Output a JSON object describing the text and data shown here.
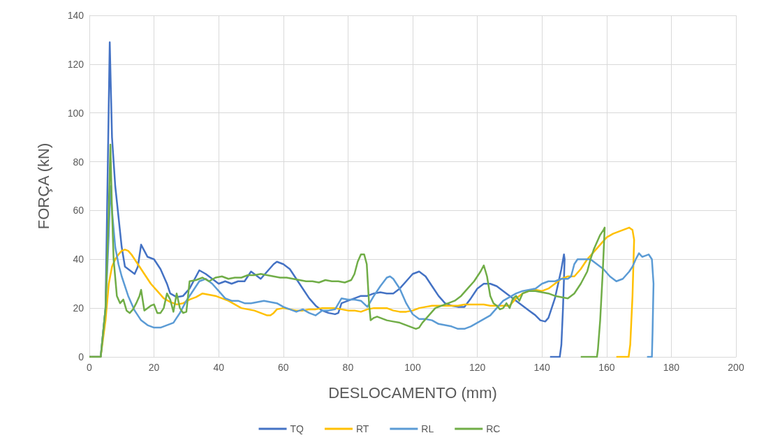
{
  "chart_data": {
    "type": "line",
    "xlabel": "DESLOCAMENTO (mm)",
    "ylabel": "FORÇA (kN)",
    "xlim": [
      0,
      200
    ],
    "xticks": [
      0,
      20,
      40,
      60,
      80,
      100,
      120,
      140,
      160,
      180,
      200
    ],
    "ylim": [
      0,
      140
    ],
    "yticks": [
      0,
      20,
      40,
      60,
      80,
      100,
      120,
      140
    ],
    "grid": true,
    "legend": "bottom",
    "marker": "none",
    "line_style": "solid",
    "series": [
      {
        "name": "TQ",
        "color": "#4472c4",
        "x": [
          0,
          3.5,
          5,
          6.3,
          7,
          8,
          10,
          11,
          13,
          14,
          15,
          16,
          18,
          20,
          22,
          24,
          25,
          27,
          29,
          31,
          33,
          34,
          36,
          38,
          40,
          42,
          44,
          46,
          48,
          50,
          52,
          53,
          55,
          57,
          58,
          60,
          62,
          64,
          66,
          68,
          70,
          72,
          74,
          76,
          77,
          78,
          80,
          82,
          84,
          86,
          88,
          90,
          92,
          94,
          96,
          98,
          100,
          102,
          104,
          106,
          108,
          110,
          112,
          114,
          116,
          118,
          120,
          122,
          124,
          126,
          128,
          130,
          132,
          134,
          136,
          138,
          139.5,
          141,
          142,
          143,
          144,
          145,
          146,
          146.8,
          147,
          146.5,
          146,
          145.5,
          142.5
        ],
        "values": [
          0,
          0,
          20,
          129,
          90,
          70,
          45,
          37,
          35,
          34,
          37,
          46,
          41,
          40,
          36,
          30,
          26,
          24.5,
          25,
          28,
          33,
          35.5,
          34,
          32,
          30,
          31,
          30,
          31,
          31,
          35,
          33,
          32,
          35,
          38,
          39,
          38,
          36,
          32,
          28,
          24,
          21,
          19,
          18,
          17.5,
          18,
          22,
          23,
          24,
          25,
          25,
          26,
          26.5,
          26,
          26,
          28,
          31,
          34,
          35,
          33,
          29,
          25,
          22,
          21,
          20.5,
          20.5,
          24,
          28,
          30,
          30,
          29,
          27,
          25,
          23,
          21,
          19,
          17,
          15,
          14.5,
          16,
          20,
          24,
          30,
          36,
          42,
          40,
          20,
          5,
          0,
          0
        ]
      },
      {
        "name": "RT",
        "color": "#ffc000",
        "x": [
          0,
          3.5,
          5,
          6,
          7,
          8,
          9,
          10,
          11,
          12,
          13,
          15,
          17,
          19,
          21,
          23,
          25,
          27,
          29,
          31,
          33,
          35,
          37,
          39,
          41,
          43,
          45,
          47,
          49,
          51,
          53,
          55,
          56,
          57,
          58,
          60,
          62,
          64,
          66,
          68,
          70,
          72,
          74,
          76,
          78,
          80,
          82,
          84,
          86,
          88,
          90,
          92,
          94,
          96,
          98,
          100,
          102,
          104,
          106,
          108,
          110,
          112,
          114,
          116,
          118,
          120,
          122,
          124,
          126,
          128,
          130,
          132,
          134,
          136,
          138,
          140,
          142,
          144,
          146,
          148,
          150,
          152,
          154,
          156,
          158,
          160,
          162,
          164,
          166,
          167,
          168,
          168.5,
          168,
          167.3,
          166.8,
          163
        ],
        "values": [
          0,
          0,
          15,
          30,
          37,
          40,
          42,
          43.5,
          44,
          43.5,
          42,
          38,
          34,
          30,
          27,
          24,
          22.5,
          21.5,
          22,
          23.5,
          24.5,
          26,
          25.5,
          25,
          24,
          23,
          21.5,
          20,
          19.5,
          19,
          18,
          17,
          17,
          18,
          19.5,
          20,
          19.5,
          19,
          19,
          19.5,
          19.5,
          20,
          20,
          20,
          19.5,
          19,
          19,
          18.5,
          19.5,
          20,
          20,
          20,
          19,
          18.5,
          18.5,
          19,
          20,
          20.5,
          21,
          21,
          21,
          21,
          21,
          21.5,
          21.5,
          21.5,
          21.5,
          21,
          21,
          21,
          21,
          24,
          26,
          27,
          27.5,
          27,
          28,
          30,
          32,
          33,
          33,
          36,
          40,
          43,
          46,
          49,
          50.5,
          51.5,
          52.5,
          53,
          52,
          48,
          25,
          5,
          0,
          0
        ]
      },
      {
        "name": "RL",
        "color": "#5b9bd5",
        "x": [
          0,
          3.5,
          5,
          6,
          6.5,
          7,
          8,
          9,
          10,
          12,
          14,
          16,
          18,
          20,
          22,
          24,
          26,
          28,
          30,
          32,
          34,
          36,
          38,
          40,
          42,
          44,
          46,
          48,
          50,
          52,
          54,
          56,
          58,
          60,
          62,
          64,
          66,
          68,
          70,
          72,
          74,
          76,
          78,
          80,
          82,
          84,
          86,
          88,
          90,
          92,
          93,
          94,
          96,
          98,
          100,
          102,
          104,
          106,
          108,
          110,
          112,
          114,
          116,
          118,
          120,
          122,
          124,
          126,
          128,
          130,
          132,
          134,
          136,
          138,
          140,
          142,
          144,
          146,
          148,
          149,
          150,
          151,
          153,
          155,
          157,
          159,
          161,
          163,
          165,
          167,
          168,
          169,
          170,
          171,
          172,
          173,
          174,
          174.5,
          174.2,
          174,
          172.5
        ],
        "values": [
          0,
          0,
          20,
          50,
          70,
          60,
          45,
          38,
          33,
          25,
          19,
          15,
          13,
          12,
          12,
          13,
          14,
          18,
          23,
          27,
          31,
          32,
          30,
          27,
          24,
          23,
          23,
          22,
          22,
          22.5,
          23,
          22.5,
          22,
          20.5,
          19.5,
          18.5,
          19.5,
          18,
          17,
          19,
          19,
          19.5,
          24,
          23.5,
          23.5,
          23,
          20.5,
          25,
          29,
          32.5,
          33,
          32,
          28,
          22,
          17.5,
          15.5,
          15.5,
          15,
          13.5,
          13,
          12.5,
          11.5,
          11.5,
          12.5,
          14,
          15.5,
          17,
          20,
          23,
          24.5,
          26,
          27,
          27.5,
          28,
          30,
          31,
          31,
          32,
          32,
          33,
          38,
          40,
          40,
          40,
          38,
          36,
          33,
          31,
          32,
          35,
          37,
          40,
          42.5,
          41,
          41.5,
          42,
          40,
          30,
          10,
          0,
          0
        ]
      },
      {
        "name": "RC",
        "color": "#70ad47",
        "x": [
          0,
          3.5,
          5,
          6,
          6.5,
          7,
          7.5,
          8.5,
          9.5,
          10.5,
          11.5,
          12.5,
          13.5,
          14.5,
          15.5,
          16,
          17,
          18,
          19,
          20,
          21,
          22,
          23,
          24,
          25,
          26,
          27,
          28,
          29,
          30,
          31,
          33,
          35,
          37,
          39,
          41,
          43,
          45,
          47,
          49,
          51,
          53,
          55,
          57,
          59,
          61,
          63,
          65,
          67,
          69,
          71,
          73,
          75,
          77,
          79,
          81,
          82,
          83,
          84,
          85,
          85.8,
          86.5,
          87,
          88,
          89,
          90,
          92,
          94,
          96,
          98,
          100,
          101,
          102,
          103,
          105,
          107,
          109,
          111,
          113,
          115,
          117,
          119,
          121,
          122,
          123,
          124,
          125,
          126,
          127,
          128,
          129,
          130,
          131,
          132,
          133,
          134,
          136,
          138,
          140,
          142,
          144,
          146,
          148,
          150,
          152,
          154,
          155,
          156,
          157,
          158,
          159,
          159.4,
          158.8,
          158,
          157.3,
          157,
          152
        ],
        "values": [
          0,
          0,
          20,
          60,
          87,
          60,
          40,
          25,
          22,
          23.5,
          19,
          18,
          19.5,
          22,
          25,
          27.5,
          19,
          20,
          21,
          21.5,
          18,
          18,
          20,
          26,
          23.5,
          18.5,
          26,
          20,
          18,
          18.5,
          31,
          31.5,
          32.5,
          31,
          32.5,
          33,
          32,
          32.5,
          32.5,
          33.5,
          33.5,
          34,
          33.5,
          33,
          32.5,
          32.5,
          32,
          31.5,
          31,
          31,
          30.5,
          31.5,
          31,
          31,
          30.5,
          31.5,
          34,
          39,
          42,
          42,
          38,
          22,
          15,
          16,
          16.5,
          16,
          15,
          14.5,
          14,
          13,
          12,
          11.5,
          12,
          14,
          17,
          20,
          21,
          22,
          23,
          25,
          28,
          31,
          35,
          37.5,
          33,
          25,
          22,
          21,
          19.5,
          20,
          22,
          20,
          24,
          25,
          23,
          26,
          27,
          27,
          26.5,
          26,
          25,
          24.5,
          24,
          26,
          30,
          35,
          40,
          44,
          47,
          50,
          52,
          53,
          35,
          15,
          3,
          0,
          0
        ]
      }
    ]
  }
}
